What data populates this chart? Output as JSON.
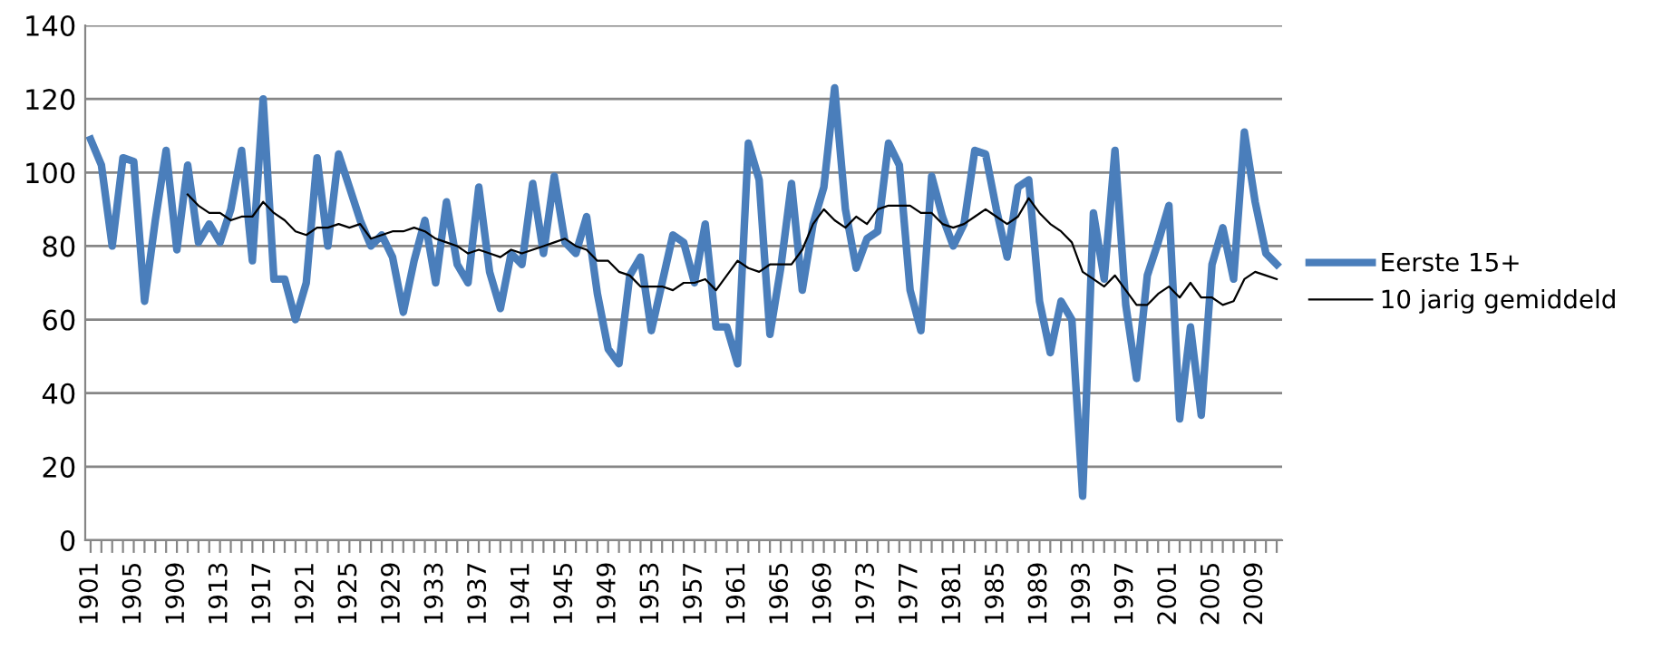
{
  "chart_data": {
    "type": "line",
    "categories": [
      "1901",
      null,
      null,
      null,
      "1905",
      null,
      null,
      null,
      "1909",
      null,
      null,
      null,
      "1913",
      null,
      null,
      null,
      "1917",
      null,
      null,
      null,
      "1921",
      null,
      null,
      null,
      "1925",
      null,
      null,
      null,
      "1929",
      null,
      null,
      null,
      "1933",
      null,
      null,
      null,
      "1937",
      null,
      null,
      null,
      "1941",
      null,
      null,
      null,
      "1945",
      null,
      null,
      null,
      "1949",
      null,
      null,
      null,
      "1953",
      null,
      null,
      null,
      "1957",
      null,
      null,
      null,
      "1961",
      null,
      null,
      null,
      "1965",
      null,
      null,
      null,
      "1969",
      null,
      null,
      null,
      "1973",
      null,
      null,
      null,
      "1977",
      null,
      null,
      null,
      "1981",
      null,
      null,
      null,
      "1985",
      null,
      null,
      null,
      "1989",
      null,
      null,
      null,
      "1993",
      null,
      null,
      null,
      "1997",
      null,
      null,
      null,
      "2001",
      null,
      null,
      null,
      "2005",
      null,
      null,
      null,
      "2009",
      null,
      null
    ],
    "series": [
      {
        "name": "Eerste 15+",
        "color": "#4a7ebb",
        "values": [
          109,
          102,
          80,
          104,
          103,
          65,
          87,
          106,
          79,
          102,
          81,
          86,
          81,
          90,
          106,
          76,
          120,
          71,
          71,
          60,
          70,
          104,
          80,
          105,
          96,
          87,
          80,
          83,
          77,
          62,
          76,
          87,
          70,
          92,
          75,
          70,
          96,
          73,
          63,
          78,
          75,
          97,
          78,
          99,
          81,
          78,
          88,
          67,
          52,
          48,
          72,
          77,
          57,
          70,
          83,
          81,
          70,
          86,
          58,
          58,
          48,
          108,
          98,
          56,
          74,
          97,
          68,
          86,
          96,
          123,
          90,
          74,
          82,
          84,
          108,
          102,
          68,
          57,
          99,
          88,
          80,
          86,
          106,
          105,
          90,
          77,
          96,
          98,
          65,
          51,
          65,
          60,
          12,
          89,
          71,
          106,
          64,
          44,
          72,
          81,
          91,
          33,
          58,
          34,
          75,
          85,
          71,
          111,
          92,
          78,
          75
        ]
      },
      {
        "name": "10 jarig gemiddeld",
        "color": "#000000",
        "values": [
          null,
          null,
          null,
          null,
          null,
          null,
          null,
          null,
          null,
          94,
          91,
          89,
          89,
          87,
          88,
          88,
          92,
          89,
          87,
          84,
          83,
          85,
          85,
          86,
          85,
          86,
          82,
          83,
          84,
          84,
          85,
          84,
          82,
          81,
          80,
          78,
          79,
          78,
          77,
          79,
          78,
          79,
          80,
          81,
          82,
          80,
          79,
          76,
          76,
          73,
          72,
          69,
          69,
          69,
          68,
          70,
          70,
          71,
          68,
          72,
          76,
          74,
          73,
          75,
          75,
          75,
          79,
          86,
          90,
          87,
          85,
          88,
          86,
          90,
          91,
          91,
          91,
          89,
          89,
          86,
          85,
          86,
          88,
          90,
          88,
          86,
          88,
          93,
          89,
          86,
          84,
          81,
          73,
          71,
          69,
          72,
          68,
          64,
          64,
          67,
          69,
          66,
          70,
          66,
          66,
          64,
          65,
          71,
          73,
          72,
          71
        ]
      }
    ],
    "ylim": [
      0,
      140
    ],
    "yticks": [
      0,
      20,
      40,
      60,
      80,
      100,
      120,
      140
    ],
    "grid": "y",
    "legend": "right"
  }
}
